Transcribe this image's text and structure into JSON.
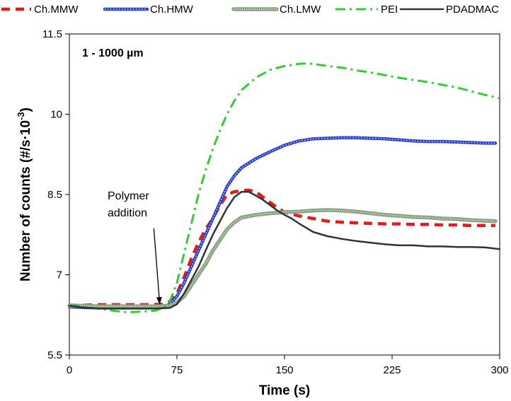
{
  "chart_data": {
    "type": "line",
    "xlabel": "Time (s)",
    "ylabel": "Number of counts (#/s·10",
    "ylabel_sup": "-3",
    "ylabel_end": ")",
    "xlim": [
      0,
      300
    ],
    "ylim": [
      5.5,
      11.5
    ],
    "x_ticks": [
      0,
      75,
      150,
      225,
      300
    ],
    "x_tick_labels": [
      "0",
      "75",
      "150",
      "225",
      "300"
    ],
    "y_ticks": [
      5.5,
      7,
      8.5,
      10,
      11.5
    ],
    "y_tick_labels": [
      "5.5",
      "7",
      "8.5",
      "10",
      "11.5"
    ],
    "grid": false,
    "legend_position": "top",
    "annotations": {
      "range": "1 - 1000 µm",
      "polymer_line1": "Polymer",
      "polymer_line2": "addition",
      "arrow_from": [
        50,
        8.0
      ],
      "arrow_to": [
        63,
        6.45
      ]
    },
    "series": [
      {
        "name": "Ch.MMW",
        "color": "#e41a1c",
        "style": "dash",
        "points": [
          [
            0,
            6.43
          ],
          [
            10,
            6.43
          ],
          [
            20,
            6.44
          ],
          [
            40,
            6.44
          ],
          [
            55,
            6.44
          ],
          [
            65,
            6.45
          ],
          [
            70,
            6.5
          ],
          [
            75,
            6.65
          ],
          [
            80,
            6.95
          ],
          [
            85,
            7.3
          ],
          [
            90,
            7.6
          ],
          [
            95,
            7.85
          ],
          [
            100,
            8.05
          ],
          [
            105,
            8.3
          ],
          [
            110,
            8.5
          ],
          [
            115,
            8.55
          ],
          [
            120,
            8.57
          ],
          [
            125,
            8.58
          ],
          [
            130,
            8.55
          ],
          [
            135,
            8.45
          ],
          [
            140,
            8.35
          ],
          [
            145,
            8.25
          ],
          [
            150,
            8.17
          ],
          [
            160,
            8.1
          ],
          [
            170,
            8.05
          ],
          [
            180,
            8.0
          ],
          [
            190,
            7.98
          ],
          [
            200,
            7.97
          ],
          [
            210,
            7.96
          ],
          [
            220,
            7.95
          ],
          [
            230,
            7.95
          ],
          [
            240,
            7.94
          ],
          [
            250,
            7.94
          ],
          [
            260,
            7.93
          ],
          [
            270,
            7.93
          ],
          [
            280,
            7.92
          ],
          [
            290,
            7.92
          ],
          [
            297,
            7.92
          ]
        ]
      },
      {
        "name": "Ch.HMW",
        "color": "#2b3fd6",
        "style": "solid-thick",
        "points": [
          [
            0,
            6.4
          ],
          [
            10,
            6.39
          ],
          [
            20,
            6.38
          ],
          [
            40,
            6.38
          ],
          [
            55,
            6.38
          ],
          [
            65,
            6.39
          ],
          [
            70,
            6.45
          ],
          [
            75,
            6.6
          ],
          [
            80,
            6.85
          ],
          [
            85,
            7.15
          ],
          [
            90,
            7.45
          ],
          [
            95,
            7.75
          ],
          [
            100,
            8.05
          ],
          [
            105,
            8.35
          ],
          [
            110,
            8.65
          ],
          [
            115,
            8.85
          ],
          [
            120,
            9.0
          ],
          [
            130,
            9.17
          ],
          [
            140,
            9.3
          ],
          [
            150,
            9.42
          ],
          [
            160,
            9.5
          ],
          [
            170,
            9.54
          ],
          [
            180,
            9.55
          ],
          [
            190,
            9.56
          ],
          [
            200,
            9.56
          ],
          [
            210,
            9.55
          ],
          [
            220,
            9.54
          ],
          [
            230,
            9.52
          ],
          [
            240,
            9.5
          ],
          [
            250,
            9.49
          ],
          [
            260,
            9.49
          ],
          [
            270,
            9.48
          ],
          [
            280,
            9.47
          ],
          [
            290,
            9.46
          ],
          [
            297,
            9.46
          ]
        ]
      },
      {
        "name": "Ch.LMW",
        "color": "#8aa383",
        "style": "dotted-thick",
        "points": [
          [
            0,
            6.42
          ],
          [
            10,
            6.42
          ],
          [
            20,
            6.41
          ],
          [
            40,
            6.41
          ],
          [
            60,
            6.41
          ],
          [
            70,
            6.42
          ],
          [
            75,
            6.48
          ],
          [
            80,
            6.6
          ],
          [
            85,
            6.8
          ],
          [
            90,
            7.0
          ],
          [
            95,
            7.2
          ],
          [
            100,
            7.45
          ],
          [
            105,
            7.65
          ],
          [
            110,
            7.85
          ],
          [
            115,
            7.98
          ],
          [
            120,
            8.07
          ],
          [
            130,
            8.12
          ],
          [
            140,
            8.15
          ],
          [
            150,
            8.17
          ],
          [
            160,
            8.18
          ],
          [
            170,
            8.2
          ],
          [
            180,
            8.21
          ],
          [
            190,
            8.2
          ],
          [
            200,
            8.18
          ],
          [
            210,
            8.15
          ],
          [
            220,
            8.12
          ],
          [
            230,
            8.1
          ],
          [
            240,
            8.08
          ],
          [
            250,
            8.07
          ],
          [
            260,
            8.05
          ],
          [
            270,
            8.04
          ],
          [
            280,
            8.02
          ],
          [
            290,
            8.01
          ],
          [
            297,
            8.0
          ]
        ]
      },
      {
        "name": "PEI",
        "color": "#33cc33",
        "style": "dashdot",
        "points": [
          [
            0,
            6.43
          ],
          [
            10,
            6.4
          ],
          [
            20,
            6.37
          ],
          [
            30,
            6.33
          ],
          [
            40,
            6.3
          ],
          [
            50,
            6.31
          ],
          [
            60,
            6.33
          ],
          [
            65,
            6.38
          ],
          [
            70,
            6.5
          ],
          [
            75,
            6.85
          ],
          [
            80,
            7.4
          ],
          [
            85,
            7.95
          ],
          [
            90,
            8.5
          ],
          [
            95,
            8.95
          ],
          [
            100,
            9.35
          ],
          [
            105,
            9.7
          ],
          [
            110,
            10.0
          ],
          [
            115,
            10.25
          ],
          [
            120,
            10.45
          ],
          [
            130,
            10.68
          ],
          [
            140,
            10.83
          ],
          [
            150,
            10.9
          ],
          [
            160,
            10.94
          ],
          [
            165,
            10.95
          ],
          [
            170,
            10.94
          ],
          [
            180,
            10.9
          ],
          [
            190,
            10.87
          ],
          [
            200,
            10.82
          ],
          [
            210,
            10.78
          ],
          [
            220,
            10.73
          ],
          [
            230,
            10.68
          ],
          [
            240,
            10.64
          ],
          [
            250,
            10.6
          ],
          [
            260,
            10.55
          ],
          [
            270,
            10.5
          ],
          [
            280,
            10.43
          ],
          [
            290,
            10.36
          ],
          [
            300,
            10.3
          ]
        ]
      },
      {
        "name": "PDADMAC",
        "color": "#333333",
        "style": "solid",
        "points": [
          [
            0,
            6.42
          ],
          [
            10,
            6.39
          ],
          [
            20,
            6.37
          ],
          [
            40,
            6.37
          ],
          [
            60,
            6.37
          ],
          [
            70,
            6.38
          ],
          [
            75,
            6.45
          ],
          [
            80,
            6.65
          ],
          [
            85,
            6.9
          ],
          [
            90,
            7.15
          ],
          [
            95,
            7.45
          ],
          [
            100,
            7.75
          ],
          [
            105,
            8.0
          ],
          [
            110,
            8.25
          ],
          [
            115,
            8.45
          ],
          [
            120,
            8.55
          ],
          [
            125,
            8.55
          ],
          [
            130,
            8.48
          ],
          [
            135,
            8.4
          ],
          [
            140,
            8.3
          ],
          [
            145,
            8.2
          ],
          [
            150,
            8.12
          ],
          [
            155,
            8.05
          ],
          [
            160,
            7.96
          ],
          [
            165,
            7.88
          ],
          [
            170,
            7.8
          ],
          [
            180,
            7.72
          ],
          [
            190,
            7.67
          ],
          [
            200,
            7.63
          ],
          [
            210,
            7.6
          ],
          [
            220,
            7.57
          ],
          [
            230,
            7.55
          ],
          [
            240,
            7.55
          ],
          [
            250,
            7.53
          ],
          [
            260,
            7.53
          ],
          [
            270,
            7.52
          ],
          [
            280,
            7.52
          ],
          [
            290,
            7.51
          ],
          [
            300,
            7.48
          ]
        ]
      }
    ]
  }
}
